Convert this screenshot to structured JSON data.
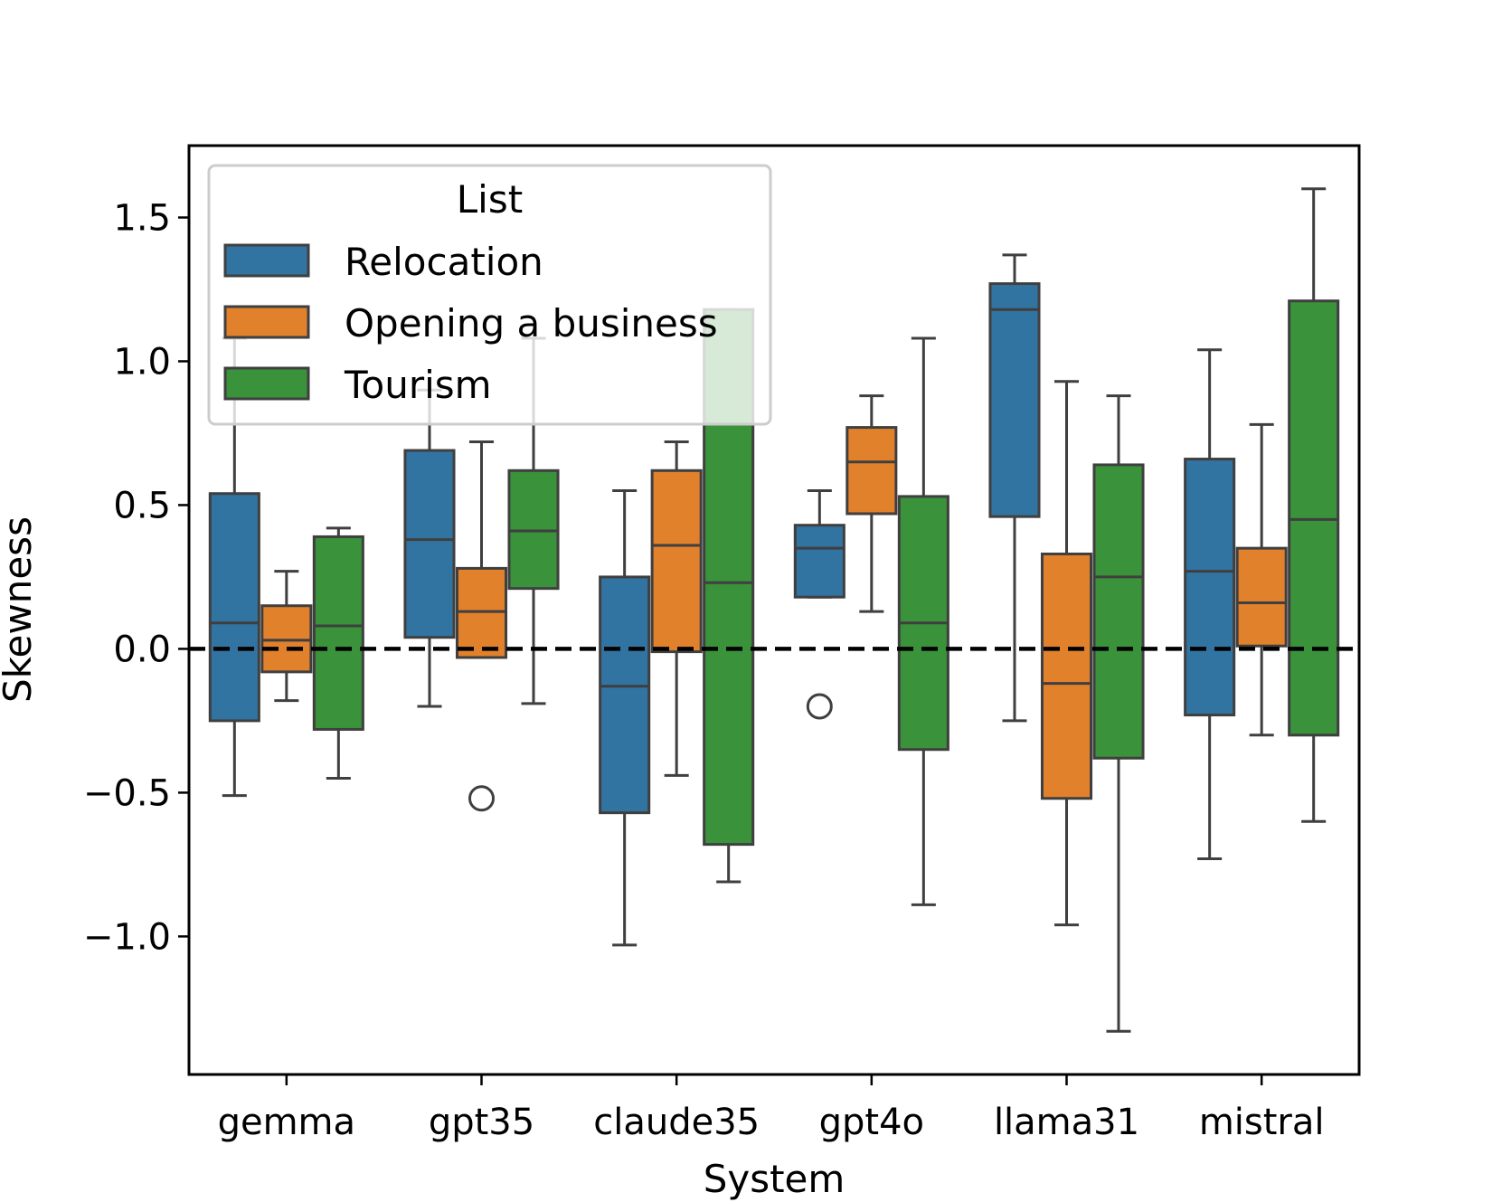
{
  "chart_data": {
    "type": "box",
    "xlabel": "System",
    "ylabel": "Skewness",
    "ylim": [
      -1.48,
      1.75
    ],
    "yticks": [
      -1.0,
      -0.5,
      0.0,
      0.5,
      1.0,
      1.5
    ],
    "ytick_labels": [
      "−1.0",
      "−0.5",
      "0.0",
      "0.5",
      "1.0",
      "1.5"
    ],
    "categories": [
      "gemma",
      "gpt35",
      "claude35",
      "gpt4o",
      "llama31",
      "mistral"
    ],
    "reference_line": {
      "y": 0.0,
      "style": "dashed",
      "color": "#000000"
    },
    "legend": {
      "title": "List",
      "position": "upper-left"
    },
    "series": [
      {
        "name": "Relocation",
        "color": "#3274a1",
        "boxes": [
          {
            "whislo": -0.51,
            "q1": -0.25,
            "med": 0.09,
            "q3": 0.54,
            "whishi": 1.08,
            "fliers": []
          },
          {
            "whislo": -0.2,
            "q1": 0.04,
            "med": 0.38,
            "q3": 0.69,
            "whishi": 0.9,
            "fliers": []
          },
          {
            "whislo": -1.03,
            "q1": -0.57,
            "med": -0.13,
            "q3": 0.25,
            "whishi": 0.55,
            "fliers": []
          },
          {
            "whislo": 0.18,
            "q1": 0.18,
            "med": 0.35,
            "q3": 0.43,
            "whishi": 0.55,
            "fliers": [
              -0.2
            ]
          },
          {
            "whislo": -0.25,
            "q1": 0.46,
            "med": 1.18,
            "q3": 1.27,
            "whishi": 1.37,
            "fliers": []
          },
          {
            "whislo": -0.73,
            "q1": -0.23,
            "med": 0.27,
            "q3": 0.66,
            "whishi": 1.04,
            "fliers": []
          }
        ]
      },
      {
        "name": "Opening a business",
        "color": "#e1812c",
        "boxes": [
          {
            "whislo": -0.18,
            "q1": -0.08,
            "med": 0.03,
            "q3": 0.15,
            "whishi": 0.27,
            "fliers": []
          },
          {
            "whislo": -0.03,
            "q1": -0.03,
            "med": 0.13,
            "q3": 0.28,
            "whishi": 0.72,
            "fliers": [
              -0.52
            ]
          },
          {
            "whislo": -0.44,
            "q1": -0.01,
            "med": 0.36,
            "q3": 0.62,
            "whishi": 0.72,
            "fliers": []
          },
          {
            "whislo": 0.13,
            "q1": 0.47,
            "med": 0.65,
            "q3": 0.77,
            "whishi": 0.88,
            "fliers": []
          },
          {
            "whislo": -0.96,
            "q1": -0.52,
            "med": -0.12,
            "q3": 0.33,
            "whishi": 0.93,
            "fliers": []
          },
          {
            "whislo": -0.3,
            "q1": 0.01,
            "med": 0.16,
            "q3": 0.35,
            "whishi": 0.78,
            "fliers": []
          }
        ]
      },
      {
        "name": "Tourism",
        "color": "#3a923a",
        "boxes": [
          {
            "whislo": -0.45,
            "q1": -0.28,
            "med": 0.08,
            "q3": 0.39,
            "whishi": 0.42,
            "fliers": []
          },
          {
            "whislo": -0.19,
            "q1": 0.21,
            "med": 0.41,
            "q3": 0.62,
            "whishi": 1.08,
            "fliers": []
          },
          {
            "whislo": -0.81,
            "q1": -0.68,
            "med": 0.23,
            "q3": 1.18,
            "whishi": 1.18,
            "fliers": []
          },
          {
            "whislo": -0.89,
            "q1": -0.35,
            "med": 0.09,
            "q3": 0.53,
            "whishi": 1.08,
            "fliers": []
          },
          {
            "whislo": -1.33,
            "q1": -0.38,
            "med": 0.25,
            "q3": 0.64,
            "whishi": 0.88,
            "fliers": []
          },
          {
            "whislo": -0.6,
            "q1": -0.3,
            "med": 0.45,
            "q3": 1.21,
            "whishi": 1.6,
            "fliers": []
          }
        ]
      }
    ]
  }
}
